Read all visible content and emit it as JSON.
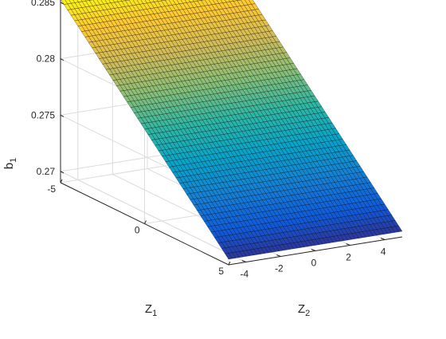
{
  "chart_data": {
    "type": "surface",
    "title": "",
    "xlabel": {
      "main": "Z",
      "sub": "1"
    },
    "ylabel": {
      "main": "Z",
      "sub": "2"
    },
    "zlabel": {
      "main": "b",
      "sub": "1"
    },
    "x_range": [
      -5,
      5
    ],
    "y_range": [
      -5,
      5
    ],
    "zlim": [
      0.269,
      0.2855
    ],
    "x_ticks": [
      -5,
      0,
      5
    ],
    "x_tick_labels": [
      "-5",
      "0",
      "5"
    ],
    "y_ticks": [
      -4,
      -2,
      0,
      2,
      4
    ],
    "y_tick_labels": [
      "-4",
      "-2",
      "0",
      "2",
      "4"
    ],
    "z_ticks": [
      0.27,
      0.275,
      0.28,
      0.285
    ],
    "z_tick_labels": [
      "0.27",
      "0.275",
      "0.28",
      "0.285"
    ],
    "surface_corners": [
      {
        "z1": -5,
        "z2": -5,
        "b1": 0.2853
      },
      {
        "z1": -5,
        "z2": 5,
        "b1": 0.2853
      },
      {
        "z1": 5,
        "z2": -5,
        "b1": 0.2695
      },
      {
        "z1": 5,
        "z2": 5,
        "b1": 0.2695
      }
    ],
    "surface_model": "b1 varies linearly with Z1 and is constant in Z2",
    "grid": true,
    "colormap": "parula",
    "colors": [
      "#352a87",
      "#0f5cdd",
      "#1481d6",
      "#06a4ca",
      "#2eb7a4",
      "#87bf77",
      "#d1bb59",
      "#fec832",
      "#f9fb0e"
    ],
    "edge_color": "#000000"
  }
}
